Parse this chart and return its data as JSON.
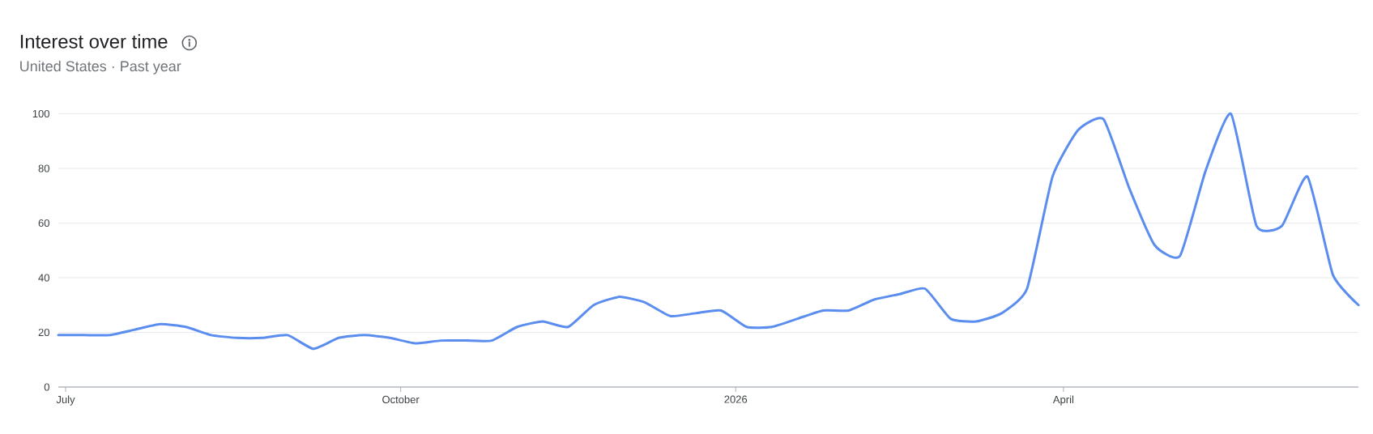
{
  "chart_data": {
    "type": "line",
    "title": "Interest over time",
    "subtitle": "United States · Past year",
    "x": [
      "2025-06-29",
      "2025-07-06",
      "2025-07-13",
      "2025-07-20",
      "2025-07-27",
      "2025-08-03",
      "2025-08-10",
      "2025-08-17",
      "2025-08-24",
      "2025-08-31",
      "2025-09-07",
      "2025-09-14",
      "2025-09-21",
      "2025-09-28",
      "2025-10-05",
      "2025-10-12",
      "2025-10-19",
      "2025-10-26",
      "2025-11-02",
      "2025-11-09",
      "2025-11-16",
      "2025-11-23",
      "2025-11-30",
      "2025-12-07",
      "2025-12-14",
      "2025-12-21",
      "2025-12-28",
      "2026-01-04",
      "2026-01-11",
      "2026-01-18",
      "2026-01-25",
      "2026-02-01",
      "2026-02-08",
      "2026-02-15",
      "2026-02-22",
      "2026-03-01",
      "2026-03-08",
      "2026-03-15",
      "2026-03-22",
      "2026-03-29",
      "2026-04-05",
      "2026-04-12",
      "2026-04-19",
      "2026-04-26",
      "2026-05-03",
      "2026-05-10",
      "2026-05-17",
      "2026-05-24",
      "2026-05-31",
      "2026-06-07",
      "2026-06-14",
      "2026-06-21"
    ],
    "values": [
      19,
      19,
      19,
      21,
      23,
      22,
      19,
      18,
      18,
      19,
      14,
      18,
      19,
      18,
      16,
      17,
      17,
      17,
      22,
      24,
      22,
      30,
      33,
      31,
      26,
      27,
      28,
      22,
      22,
      25,
      28,
      28,
      32,
      34,
      36,
      25,
      24,
      27,
      36,
      77,
      94,
      98,
      73,
      52,
      48,
      79,
      100,
      59,
      59,
      77,
      41,
      30
    ],
    "color": "#5b8def",
    "xlim": [
      "2025-06-29",
      "2026-06-21"
    ],
    "xticks": [
      {
        "value": "2025-07-01",
        "label": "July"
      },
      {
        "value": "2025-10-01",
        "label": "October"
      },
      {
        "value": "2026-01-01",
        "label": "2026"
      },
      {
        "value": "2026-04-01",
        "label": "April"
      }
    ],
    "ylim": [
      0,
      100
    ],
    "yticks": [
      0,
      20,
      40,
      60,
      80,
      100
    ],
    "grid": "y"
  }
}
